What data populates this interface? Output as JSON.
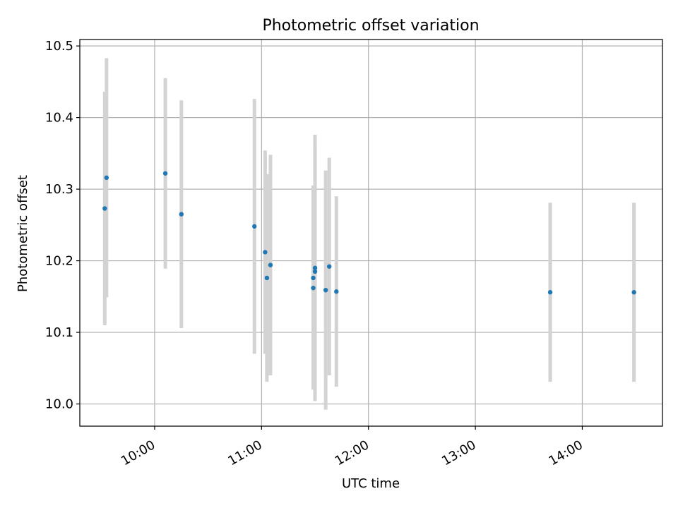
{
  "chart_data": {
    "type": "scatter",
    "title": "Photometric offset variation",
    "xlabel": "UTC time",
    "ylabel": "Photometric offset",
    "x_axis_type": "time",
    "xlim": [
      "09:18",
      "14:45"
    ],
    "ylim": [
      9.969,
      10.509
    ],
    "x_ticks": [
      "10:00",
      "11:00",
      "12:00",
      "13:00",
      "14:00"
    ],
    "y_ticks": [
      10.0,
      10.1,
      10.2,
      10.3,
      10.4,
      10.5
    ],
    "y_tick_labels": [
      "10.0",
      "10.1",
      "10.2",
      "10.3",
      "10.4",
      "10.5"
    ],
    "grid": true,
    "legend": "none",
    "marker_color": "#1f77b4",
    "errorbar_color": "#d3d3d3",
    "points": [
      {
        "x": "09:32",
        "y": 10.273,
        "err": 0.163
      },
      {
        "x": "09:33",
        "y": 10.316,
        "err": 0.167
      },
      {
        "x": "10:06",
        "y": 10.322,
        "err": 0.133
      },
      {
        "x": "10:15",
        "y": 10.265,
        "err": 0.159
      },
      {
        "x": "10:56",
        "y": 10.248,
        "err": 0.178
      },
      {
        "x": "11:02",
        "y": 10.212,
        "err": 0.142
      },
      {
        "x": "11:03",
        "y": 10.176,
        "err": 0.145
      },
      {
        "x": "11:05",
        "y": 10.194,
        "err": 0.154
      },
      {
        "x": "11:29",
        "y": 10.162,
        "err": 0.142
      },
      {
        "x": "11:29",
        "y": 10.176,
        "err": 0.129
      },
      {
        "x": "11:30",
        "y": 10.19,
        "err": 0.186
      },
      {
        "x": "11:30",
        "y": 10.185,
        "err": 0.175
      },
      {
        "x": "11:36",
        "y": 10.159,
        "err": 0.167
      },
      {
        "x": "11:38",
        "y": 10.192,
        "err": 0.152
      },
      {
        "x": "11:42",
        "y": 10.157,
        "err": 0.133
      },
      {
        "x": "13:42",
        "y": 10.156,
        "err": 0.125
      },
      {
        "x": "14:29",
        "y": 10.156,
        "err": 0.125
      }
    ]
  }
}
